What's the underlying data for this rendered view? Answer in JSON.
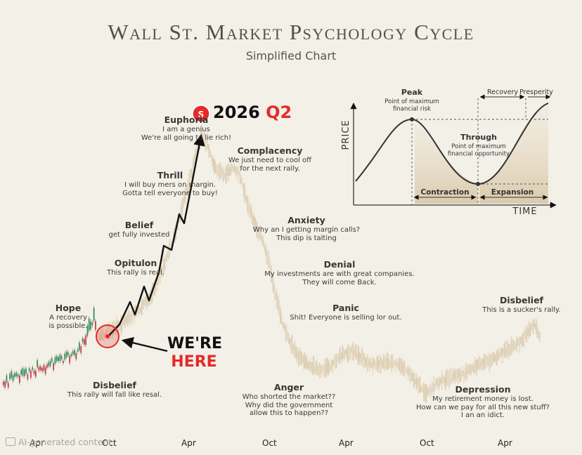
{
  "title": "Wall St. Market Psychology Cycle",
  "subtitle": "Simplified Chart",
  "chart_data": {
    "type": "line",
    "title": "Wall St. Market Psychology Cycle",
    "subtitle": "Simplified Chart",
    "x_tick_labels": [
      "Apr",
      "Oct",
      "Apr",
      "Oct",
      "Apr",
      "Oct",
      "Apr"
    ],
    "phases": [
      {
        "name": "Disbelief",
        "note": "This rally will fall like resal."
      },
      {
        "name": "Hope",
        "note": "A recovery\nis possible."
      },
      {
        "name": "Opitulon",
        "note": "This rally is real."
      },
      {
        "name": "Belief",
        "note": "get fully invested"
      },
      {
        "name": "Thrill",
        "note": "I will buy mers on margin.\nGotta tell everyone to buy!"
      },
      {
        "name": "Euphoria",
        "note": "I am a genius\nWe're all going to lie rich!"
      },
      {
        "name": "Complacency",
        "note": "We just need to cool off\nfor the next rally."
      },
      {
        "name": "Anxiety",
        "note": "Why an I getting margin calls?\nThis dip is talting"
      },
      {
        "name": "Denial",
        "note": "My investments are with great companies.\nThey will come Back."
      },
      {
        "name": "Panic",
        "note": "Shit! Everyone is selling lor out."
      },
      {
        "name": "Anger",
        "note": "Who shorted the market??\nWhy did the government\nallow this to happen??"
      },
      {
        "name": "Depression",
        "note": "My retirement money is lost.\nHow can we pay for all this new stuff?\nI an an idict."
      },
      {
        "name": "Disbelief",
        "note": "This is a sucker's rally."
      }
    ],
    "callouts": {
      "target_badge": "S",
      "target_year": "2026",
      "target_quarter": "Q2",
      "here_line1": "WE'RE",
      "here_line2": "HERE"
    },
    "inset": {
      "type": "line",
      "xlabel": "TIME",
      "ylabel": "PRICE",
      "labels": {
        "peak": "Peak",
        "peak_note": "Point of maximum\nfinancial risk",
        "trough": "Through",
        "trough_note": "Point of maximum\nfinancial opportunity",
        "contraction": "Contraction",
        "expansion": "Expansion",
        "recovery": "Recovery",
        "prosperity": "Presperity"
      }
    }
  },
  "colors": {
    "background": "#f3f0e8",
    "price_fill": "#d9c7a6",
    "candle_up": "#2e8b57",
    "candle_down": "#c8323a",
    "accent_red": "#e52a2a",
    "arrow": "#111111"
  },
  "watermark": "AI-generated content"
}
